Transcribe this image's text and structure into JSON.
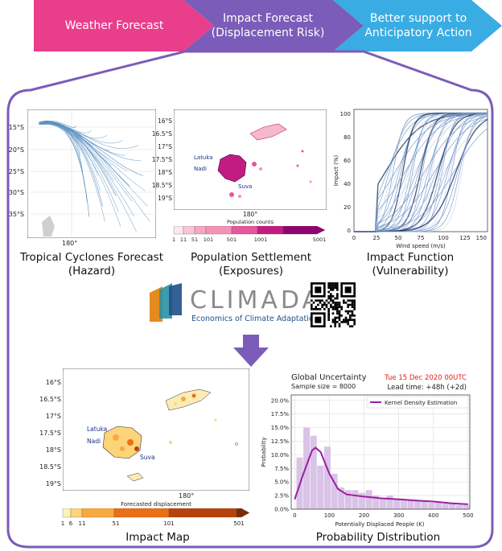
{
  "pipeline": {
    "step1": "Weather Forecast",
    "step2_line1": "Impact Forecast",
    "step2_line2": "(Displacement Risk)",
    "step3_line1": "Better support to",
    "step3_line2": "Anticipatory Action",
    "colors": {
      "step1": "#e83e8c",
      "step2": "#7b5cb8",
      "step3": "#39ace3",
      "frame": "#7b5cb8"
    }
  },
  "panels": {
    "hazard": {
      "caption_line1": "Tropical Cyclones Forecast",
      "caption_line2": "(Hazard)",
      "lat_ticks": [
        "15°S",
        "20°S",
        "25°S",
        "30°S",
        "35°S"
      ],
      "lon_tick": "180°"
    },
    "exposure": {
      "caption_line1": "Population Settlement",
      "caption_line2": "(Exposures)",
      "lat_ticks": [
        "16°S",
        "16.5°S",
        "17°S",
        "17.5°S",
        "18°S",
        "18.5°S",
        "19°S"
      ],
      "lon_tick": "180°",
      "places": [
        "Latuka",
        "Nadi",
        "Suva"
      ],
      "colorbar_title": "Population counts",
      "colorbar_ticks": [
        "1",
        "11",
        "51",
        "101",
        "501",
        "1001",
        "5001"
      ],
      "colorbar_colors": [
        "#fde7ec",
        "#f9c6d4",
        "#f493b6",
        "#e6579c",
        "#c21c82",
        "#8e0572"
      ]
    },
    "vulnerability": {
      "caption_line1": "Impact Function",
      "caption_line2": "(Vulnerability)",
      "ylabel": "Impact (%)",
      "xlabel": "Wind speed (m/s)",
      "x_ticks": [
        "0",
        "25",
        "50",
        "75",
        "100",
        "125",
        "150"
      ],
      "y_ticks": [
        "0",
        "20",
        "40",
        "60",
        "80",
        "100"
      ]
    }
  },
  "logo": {
    "name": "CLIMADA",
    "subtitle": "Economics of Climate Adaptation",
    "colors": [
      "#e48b1e",
      "#2a8fa3",
      "#1f4f8a"
    ]
  },
  "impact_map": {
    "caption": "Impact Map",
    "lat_ticks": [
      "16°S",
      "16.5°S",
      "17°S",
      "17.5°S",
      "18°S",
      "18.5°S",
      "19°S"
    ],
    "lon_tick": "180°",
    "places": [
      "Latuka",
      "Nadi",
      "Suva"
    ],
    "colorbar_title": "Forecasted displacement",
    "colorbar_ticks": [
      "1",
      "6",
      "11",
      "51",
      "101",
      "501"
    ],
    "colorbar_colors": [
      "#fdf1b5",
      "#fcd47a",
      "#f9a93e",
      "#ea6f16",
      "#b7430a",
      "#7a2b05"
    ]
  },
  "probability": {
    "caption": "Probability Distribution",
    "title": "Global Uncertainty",
    "sample_size": "Sample size = 8000",
    "date": "Tue 15 Dec 2020 00UTC",
    "lead_time": "Lead time: +48h (+2d)",
    "legend": "Kernel Density Estimation",
    "ylabel": "Probability",
    "xlabel": "Potentially Displaced People (K)",
    "x_ticks": [
      "0",
      "100",
      "200",
      "300",
      "400",
      "500"
    ],
    "y_ticks": [
      "0.0%",
      "2.5%",
      "5.0%",
      "7.5%",
      "10.0%",
      "12.5%",
      "15.0%",
      "17.5%",
      "20.0%"
    ],
    "date_color": "#e0201b",
    "kde_color": "#9b1f9f",
    "bar_color": "#d9c3e6"
  },
  "chart_data": {
    "type": "bar",
    "x": [
      15,
      35,
      55,
      75,
      95,
      115,
      135,
      155,
      175,
      195,
      215,
      235,
      255,
      275,
      295,
      315,
      335,
      355,
      375,
      395,
      415,
      435,
      455,
      475,
      495
    ],
    "values": [
      9.5,
      15.0,
      13.5,
      8.0,
      11.5,
      6.5,
      4.0,
      3.5,
      3.5,
      3.0,
      3.5,
      2.5,
      2.0,
      2.5,
      2.0,
      1.8,
      1.7,
      1.5,
      1.5,
      1.2,
      1.2,
      1.0,
      1.0,
      0.8,
      0.8
    ],
    "series": [
      {
        "name": "Kernel Density Estimation",
        "x": [
          0,
          25,
          50,
          60,
          75,
          100,
          125,
          150,
          200,
          250,
          300,
          350,
          400,
          450,
          500
        ],
        "values": [
          1.8,
          6.5,
          10.8,
          11.3,
          10.5,
          6.5,
          3.7,
          2.7,
          2.3,
          2.0,
          1.8,
          1.6,
          1.4,
          1.1,
          0.9
        ]
      }
    ],
    "title": "Global Uncertainty",
    "xlabel": "Potentially Displaced People (K)",
    "ylabel": "Probability",
    "xlim": [
      -10,
      505
    ],
    "ylim": [
      0,
      21
    ]
  }
}
